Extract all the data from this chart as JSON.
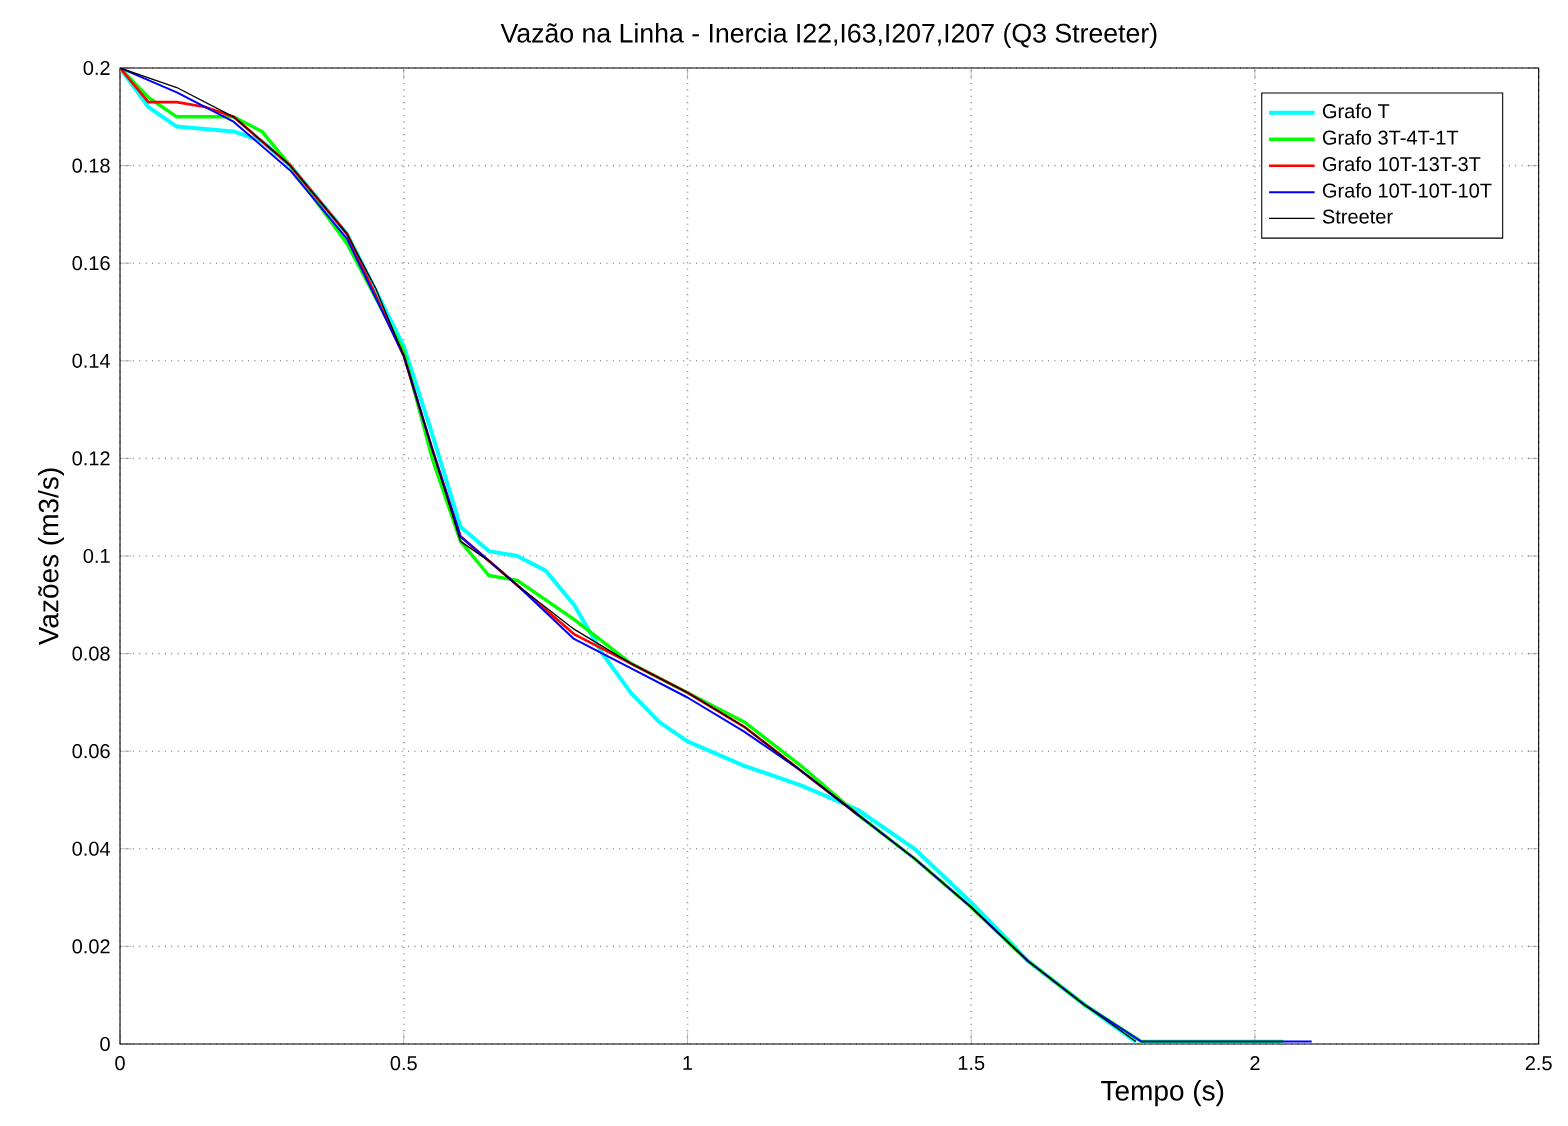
{
  "chart_data": {
    "type": "line",
    "title": "Vazão na Linha - Inercia I22,I63,I207,I207 (Q3 Streeter)",
    "xlabel": "Tempo (s)",
    "ylabel": "Vazões (m3/s)",
    "xlim": [
      0,
      2.5
    ],
    "ylim": [
      0,
      0.2
    ],
    "xticks": [
      0,
      0.5,
      1,
      1.5,
      2,
      2.5
    ],
    "yticks": [
      0,
      0.02,
      0.04,
      0.06,
      0.08,
      0.1,
      0.12,
      0.14,
      0.16,
      0.18,
      0.2
    ],
    "grid": true,
    "legend": "top right",
    "line_style": "solid",
    "marker": "none",
    "series": [
      {
        "name": "Grafo T",
        "color": "#00ffff",
        "x": [
          0,
          0.05,
          0.1,
          0.2,
          0.25,
          0.3,
          0.4,
          0.5,
          0.55,
          0.6,
          0.65,
          0.7,
          0.75,
          0.8,
          0.85,
          0.9,
          0.95,
          1.0,
          1.1,
          1.2,
          1.3,
          1.4,
          1.5,
          1.6,
          1.7,
          1.79
        ],
        "values": [
          0.2,
          0.192,
          0.188,
          0.187,
          0.185,
          0.18,
          0.166,
          0.143,
          0.125,
          0.106,
          0.101,
          0.1,
          0.097,
          0.09,
          0.08,
          0.072,
          0.066,
          0.062,
          0.057,
          0.053,
          0.048,
          0.04,
          0.029,
          0.017,
          0.008,
          0.0005
        ]
      },
      {
        "name": "Grafo 3T-4T-1T",
        "color": "#00ff00",
        "x": [
          0,
          0.05,
          0.1,
          0.15,
          0.2,
          0.25,
          0.3,
          0.4,
          0.5,
          0.55,
          0.6,
          0.65,
          0.7,
          0.8,
          0.9,
          1.0,
          1.1,
          1.2,
          1.3,
          1.4,
          1.5,
          1.6,
          1.7,
          1.8,
          2.05
        ],
        "values": [
          0.2,
          0.194,
          0.19,
          0.19,
          0.19,
          0.187,
          0.18,
          0.164,
          0.142,
          0.12,
          0.103,
          0.096,
          0.095,
          0.087,
          0.078,
          0.072,
          0.066,
          0.057,
          0.047,
          0.038,
          0.028,
          0.017,
          0.008,
          0.0005,
          0.0005
        ]
      },
      {
        "name": "Grafo 10T-13T-3T",
        "color": "#ff0000",
        "x": [
          0,
          0.05,
          0.1,
          0.15,
          0.2,
          0.3,
          0.4,
          0.5,
          0.55,
          0.6,
          0.65,
          0.7,
          0.8,
          0.9,
          1.0,
          1.1,
          1.2,
          1.3
        ],
        "values": [
          0.2,
          0.193,
          0.193,
          0.192,
          0.19,
          0.18,
          0.166,
          0.141,
          0.122,
          0.104,
          0.099,
          0.094,
          0.084,
          0.078,
          0.072,
          0.065,
          0.056,
          0.047
        ]
      },
      {
        "name": "Grafo 10T-10T-10T",
        "color": "#0000ff",
        "x": [
          0,
          0.1,
          0.2,
          0.3,
          0.4,
          0.5,
          0.55,
          0.6,
          0.65,
          0.7,
          0.8,
          0.9,
          1.0,
          1.1,
          1.2,
          1.3,
          1.4,
          1.5,
          1.6,
          1.7,
          1.8,
          2.1
        ],
        "values": [
          0.2,
          0.195,
          0.189,
          0.179,
          0.165,
          0.141,
          0.122,
          0.104,
          0.099,
          0.094,
          0.083,
          0.077,
          0.071,
          0.064,
          0.056,
          0.047,
          0.038,
          0.028,
          0.017,
          0.008,
          0.0005,
          0.0005
        ]
      },
      {
        "name": "Streeter",
        "color": "#000000",
        "x": [
          0,
          0.1,
          0.2,
          0.3,
          0.4,
          0.45,
          0.5,
          0.55,
          0.6,
          0.65,
          0.7,
          0.8,
          0.9,
          1.0,
          1.1,
          1.2,
          1.3,
          1.4,
          1.5,
          1.6,
          1.7,
          1.79
        ],
        "values": [
          0.2,
          0.196,
          0.19,
          0.18,
          0.166,
          0.155,
          0.141,
          0.122,
          0.103,
          0.099,
          0.094,
          0.085,
          0.078,
          0.072,
          0.065,
          0.056,
          0.047,
          0.038,
          0.028,
          0.017,
          0.008,
          0.0005
        ]
      }
    ]
  }
}
